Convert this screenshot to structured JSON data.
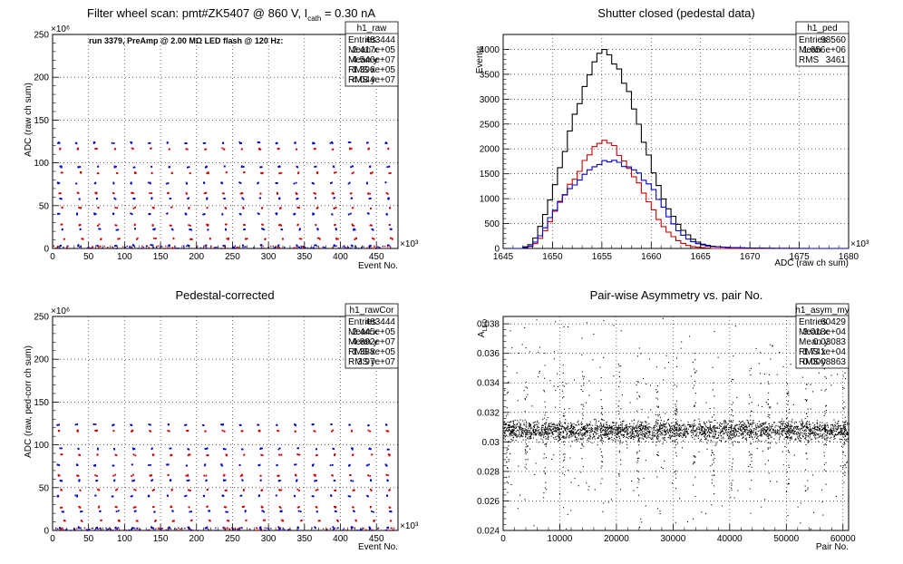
{
  "chart_data": [
    {
      "id": "raw",
      "type": "scatter",
      "title_main": "Filter wheel scan: pmt#ZK5407 @  860 V, I",
      "title_sub": "cath",
      "title_end": " = 0.30 nA",
      "xlabel": "Event No.",
      "ylabel": "ADC (raw ch sum)",
      "x_exponent": "×10³",
      "y_exponent": "×10⁶",
      "xlim": [
        0,
        480
      ],
      "ylim": [
        0,
        250
      ],
      "x_ticks": [
        0,
        50,
        100,
        150,
        200,
        250,
        300,
        350,
        400,
        450
      ],
      "y_ticks": [
        0,
        50,
        100,
        150,
        200,
        250
      ],
      "annotation": "run 3379, PreAmp @ 2.00 MΩ LED flash @  120 Hz:",
      "grid": true,
      "period": 25.3,
      "levels": [
        {
          "y": 123,
          "color": "#0000cc"
        },
        {
          "y": 116,
          "color": "#cc0000"
        },
        {
          "y": 95,
          "color": "#0000cc"
        },
        {
          "y": 88,
          "color": "#cc0000"
        },
        {
          "y": 76,
          "color": "#0000cc"
        },
        {
          "y": 64,
          "color": "#cc0000"
        },
        {
          "y": 58,
          "color": "#0000cc"
        },
        {
          "y": 47,
          "color": "#cc0000"
        },
        {
          "y": 40,
          "color": "#0000cc"
        },
        {
          "y": 27,
          "color": "#cc0000"
        },
        {
          "y": 22,
          "color": "#0000cc"
        },
        {
          "y": 11,
          "color": "#cc0000"
        },
        {
          "y": 3,
          "color": "#0000cc"
        }
      ],
      "stats": {
        "name": "h1_raw",
        "rows": [
          [
            "Entries",
            "483444"
          ],
          [
            "Mean x",
            "2.417e+05"
          ],
          [
            "Mean y",
            "4.546e+07"
          ],
          [
            "RMS x",
            "1.396e+05"
          ],
          [
            "RMS y",
            "4.044e+07"
          ]
        ]
      }
    },
    {
      "id": "ped",
      "type": "line",
      "title": "Shutter closed (pedestal data)",
      "xlabel": "ADC (raw ch sum)",
      "ylabel": "Events",
      "x_exponent": "×10³",
      "xlim": [
        1645,
        1680
      ],
      "ylim": [
        0,
        4300
      ],
      "x_ticks": [
        1645,
        1650,
        1655,
        1660,
        1665,
        1670,
        1675,
        1680
      ],
      "y_ticks": [
        0,
        500,
        1000,
        1500,
        2000,
        2500,
        3000,
        3500,
        4000
      ],
      "grid": true,
      "series": [
        {
          "color": "#000000",
          "x": [
            1647,
            1648,
            1649,
            1650,
            1651,
            1652,
            1653,
            1654,
            1655,
            1656,
            1657,
            1658,
            1659,
            1660,
            1661,
            1662,
            1663,
            1664,
            1665,
            1666,
            1668,
            1670
          ],
          "values": [
            10,
            100,
            550,
            1100,
            1750,
            2500,
            3050,
            3650,
            4000,
            3900,
            3500,
            3000,
            2350,
            1700,
            1100,
            700,
            420,
            220,
            100,
            50,
            15,
            5
          ]
        },
        {
          "color": "#cc0000",
          "x": [
            1647,
            1648,
            1649,
            1650,
            1651,
            1652,
            1653,
            1654,
            1655,
            1656,
            1657,
            1658,
            1659,
            1660,
            1661,
            1662,
            1663,
            1664,
            1666
          ],
          "values": [
            5,
            50,
            250,
            650,
            1000,
            1350,
            1650,
            1950,
            2200,
            2100,
            1850,
            1550,
            1200,
            850,
            500,
            280,
            120,
            40,
            5
          ]
        },
        {
          "color": "#0000cc",
          "x": [
            1647,
            1648,
            1649,
            1650,
            1651,
            1652,
            1653,
            1654,
            1655,
            1656,
            1657,
            1658,
            1659,
            1660,
            1661,
            1662,
            1663,
            1664,
            1665,
            1666,
            1668,
            1670,
            1672,
            1676
          ],
          "values": [
            5,
            60,
            320,
            700,
            1000,
            1250,
            1450,
            1600,
            1750,
            1750,
            1700,
            1650,
            1450,
            1250,
            900,
            550,
            300,
            150,
            80,
            40,
            20,
            10,
            5,
            2
          ]
        }
      ],
      "stats": {
        "name": "h1_ped",
        "rows": [
          [
            "Entries",
            "98560"
          ],
          [
            "Mean",
            "1.656e+06"
          ],
          [
            "RMS",
            "3461"
          ]
        ]
      }
    },
    {
      "id": "cor",
      "type": "scatter",
      "title": "Pedestal-corrected",
      "xlabel": "Event No.",
      "ylabel": "ADC (raw, ped-corr ch sum)",
      "x_exponent": "×10³",
      "y_exponent": "×10⁶",
      "xlim": [
        0,
        480
      ],
      "ylim": [
        0,
        250
      ],
      "x_ticks": [
        0,
        50,
        100,
        150,
        200,
        250,
        300,
        350,
        400,
        450
      ],
      "y_ticks": [
        0,
        50,
        100,
        150,
        200,
        250
      ],
      "grid": true,
      "period": 25.3,
      "levels": [
        {
          "y": 123,
          "color": "#0000cc"
        },
        {
          "y": 116,
          "color": "#cc0000"
        },
        {
          "y": 95,
          "color": "#0000cc"
        },
        {
          "y": 88,
          "color": "#cc0000"
        },
        {
          "y": 76,
          "color": "#0000cc"
        },
        {
          "y": 64,
          "color": "#cc0000"
        },
        {
          "y": 58,
          "color": "#0000cc"
        },
        {
          "y": 47,
          "color": "#cc0000"
        },
        {
          "y": 40,
          "color": "#0000cc"
        },
        {
          "y": 27,
          "color": "#cc0000"
        },
        {
          "y": 22,
          "color": "#0000cc"
        },
        {
          "y": 11,
          "color": "#cc0000"
        },
        {
          "y": 3,
          "color": "#0000cc"
        }
      ],
      "stats": {
        "name": "h1_rawCor",
        "rows": [
          [
            "Entries",
            "483444"
          ],
          [
            "Mean x",
            "2.445e+05"
          ],
          [
            "Mean y",
            "4.892e+07"
          ],
          [
            "RMS x",
            "1.388e+05"
          ],
          [
            "RMS y",
            "3.97e+07"
          ]
        ]
      }
    },
    {
      "id": "asym",
      "type": "scatter",
      "title": "Pair-wise Asymmetry vs. pair No.",
      "xlabel": "Pair No.",
      "ylabel_main": "A",
      "ylabel_sub": "LED",
      "xlim": [
        0,
        61000
      ],
      "ylim": [
        0.024,
        0.0385
      ],
      "x_ticks": [
        0,
        10000,
        20000,
        30000,
        40000,
        50000,
        60000
      ],
      "y_ticks": [
        0.024,
        0.026,
        0.028,
        0.03,
        0.032,
        0.034,
        0.036,
        0.038
      ],
      "band_center": 0.0308,
      "band_halfwidth": 0.0006,
      "spike_period": 3300,
      "grid": true,
      "stats": {
        "name": "h1_asym_my",
        "rows": [
          [
            "Entries",
            "60429"
          ],
          [
            "Mean x",
            "3.018e+04"
          ],
          [
            "Mean y",
            "0.03083"
          ],
          [
            "RMS x",
            "1.741e+04"
          ],
          [
            "RMS y",
            "0.0008863"
          ]
        ]
      }
    }
  ]
}
